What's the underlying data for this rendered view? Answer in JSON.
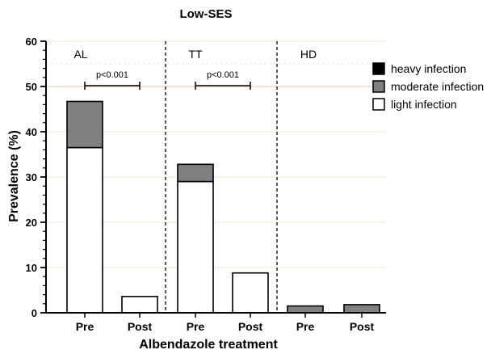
{
  "chart_data": {
    "type": "bar",
    "stacked": true,
    "title": "Low-SES",
    "xlabel": "Albendazole treatment",
    "ylabel": "Prevalence (%)",
    "ylim": [
      0,
      60
    ],
    "yticks": [
      "0",
      "10",
      "20",
      "30",
      "40",
      "50",
      "60"
    ],
    "groups": [
      "AL",
      "TT",
      "HD"
    ],
    "categories": [
      "Pre",
      "Post",
      "Pre",
      "Post",
      "Pre",
      "Post"
    ],
    "series": [
      {
        "name": "light infection",
        "color": "#ffffff",
        "values": [
          36.5,
          3.6,
          29.0,
          8.8,
          0,
          0
        ]
      },
      {
        "name": "moderate infection",
        "color": "#808080",
        "values": [
          10.2,
          0,
          3.8,
          0,
          1.5,
          1.8
        ]
      },
      {
        "name": "heavy infection",
        "color": "#000000",
        "values": [
          0,
          0,
          0,
          0,
          0,
          0
        ]
      }
    ],
    "legend_order": [
      "heavy infection",
      "moderate infection",
      "light infection"
    ],
    "legend_position": "top-right",
    "grid": true,
    "annotations": [
      {
        "text": "p<0.001",
        "group": "AL"
      },
      {
        "text": "p<0.001",
        "group": "TT"
      }
    ]
  }
}
